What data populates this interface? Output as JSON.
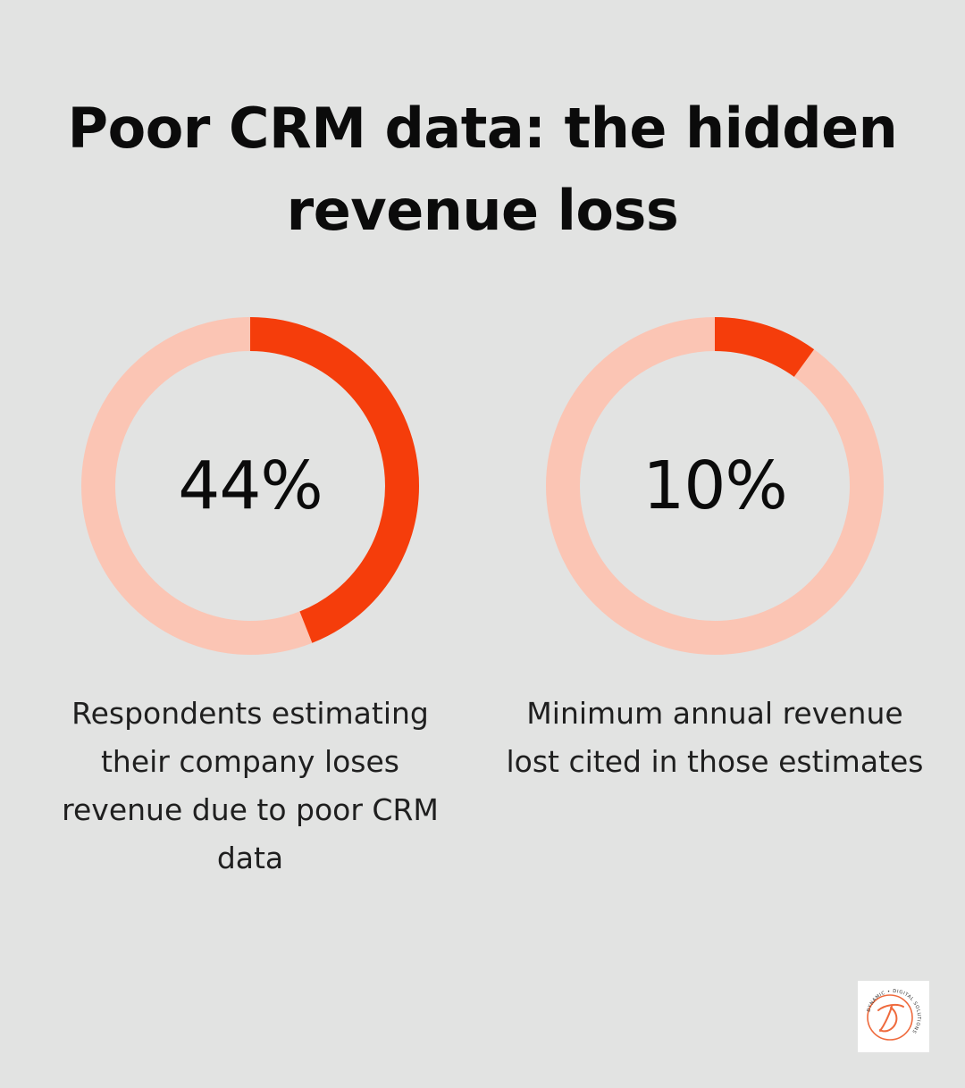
{
  "title": "Poor CRM data: the hidden revenue loss",
  "colors": {
    "background": "#e2e3e2",
    "accent": "#f53d0b",
    "track": "#fbc5b4"
  },
  "chart_data": [
    {
      "type": "pie",
      "variant": "donut",
      "value": 44,
      "unit": "%",
      "label": "44%",
      "caption": "Respondents estimating their company loses revenue due to poor CRM data"
    },
    {
      "type": "pie",
      "variant": "donut",
      "value": 10,
      "unit": "%",
      "label": "10%",
      "caption": "Minimum annual revenue lost cited in those estimates"
    }
  ],
  "logo": {
    "ring_text": "DYNAMIC • DIGITAL SOLUTIONS",
    "icon": "dynamic-digital-solutions-logo"
  }
}
